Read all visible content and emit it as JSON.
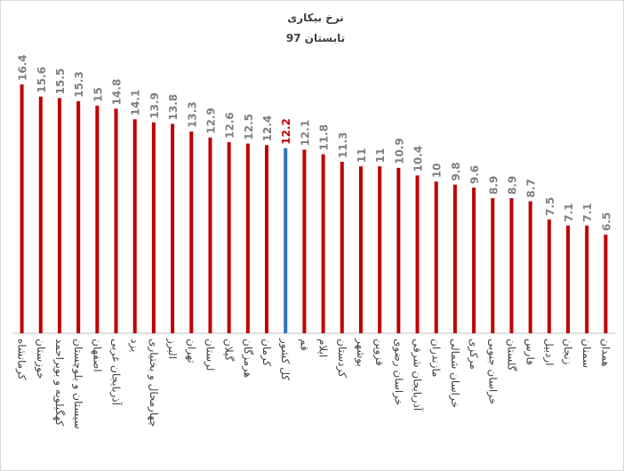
{
  "chart_data": {
    "type": "bar",
    "title": "نرخ بیکاری",
    "subtitle": "تابستان 97",
    "categories": [
      "کرمانشاه",
      "خوزستان",
      "کهگیلویه و بویراحمد",
      "سیستان و بلوچستان",
      "اصفهان",
      "آذربایجان غربی",
      "یزد",
      "چهارمحال و بختیاری",
      "البرز",
      "تهران",
      "لرستان",
      "گیلان",
      "هرمزگان",
      "کرمان",
      "کل کشور",
      "قم",
      "ایلام",
      "کردستان",
      "بوشهر",
      "قزوین",
      "خراسان رضوی",
      "آذربایجان شرقی",
      "مازندران",
      "خراسان شمالی",
      "مرکزی",
      "خراسان جنوبی",
      "گلستان",
      "فارس",
      "اردبیل",
      "زنجان",
      "سمنان",
      "همدان"
    ],
    "values": [
      16.4,
      15.6,
      15.5,
      15.3,
      15,
      14.8,
      14.1,
      13.9,
      13.8,
      13.3,
      12.9,
      12.6,
      12.5,
      12.4,
      12.2,
      12.1,
      11.8,
      11.3,
      11,
      11,
      10.9,
      10.4,
      10,
      9.8,
      9.6,
      8.9,
      8.9,
      8.7,
      7.5,
      7.1,
      7.1,
      6.5
    ],
    "color": "#c00000",
    "highlight_index": 14,
    "highlight_color": "#2e75b6",
    "highlight_label_color": "#c00000",
    "label_color": "#7f7f7f"
  }
}
